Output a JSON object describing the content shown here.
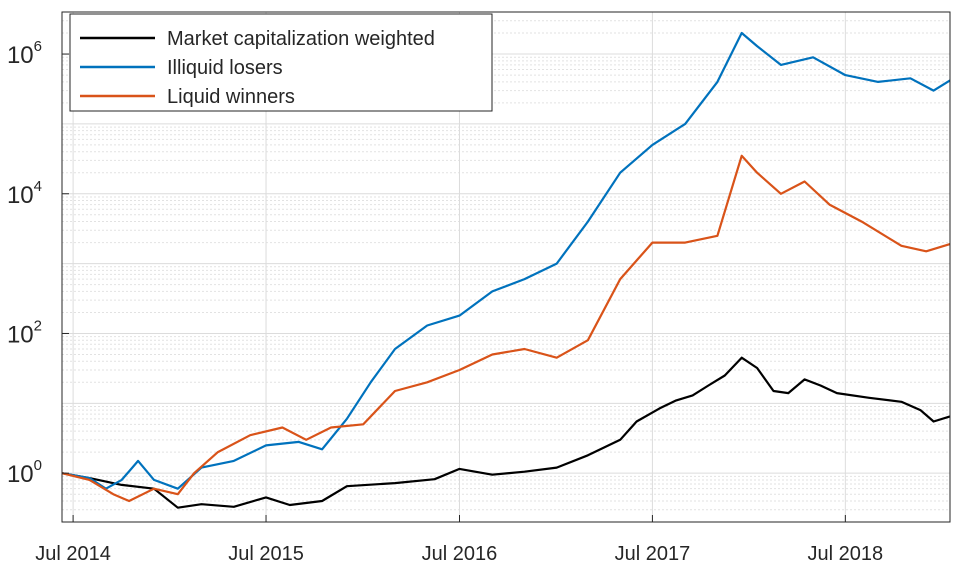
{
  "chart_data": {
    "type": "line",
    "title": "",
    "xlabel": "",
    "ylabel": "",
    "y_scale": "log",
    "ylim": [
      0.2,
      4000000
    ],
    "xlim": [
      "2014-06-10",
      "2019-01-15"
    ],
    "grid": true,
    "minor_grid": true,
    "legend_position": "top-left",
    "x_ticks": [
      {
        "date": "2014-07-01",
        "label": "Jul 2014"
      },
      {
        "date": "2015-07-01",
        "label": "Jul 2015"
      },
      {
        "date": "2016-07-01",
        "label": "Jul 2016"
      },
      {
        "date": "2017-07-01",
        "label": "Jul 2017"
      },
      {
        "date": "2018-07-01",
        "label": "Jul 2018"
      }
    ],
    "y_ticks": [
      {
        "value": 1,
        "base": "10",
        "exp": "0"
      },
      {
        "value": 100,
        "base": "10",
        "exp": "2"
      },
      {
        "value": 10000,
        "base": "10",
        "exp": "4"
      },
      {
        "value": 1000000,
        "base": "10",
        "exp": "6"
      }
    ],
    "series": [
      {
        "name": "Market capitalization weighted",
        "color": "#000000",
        "points": [
          [
            "2014-06-10",
            1.0
          ],
          [
            "2014-08-01",
            0.85
          ],
          [
            "2014-10-01",
            0.68
          ],
          [
            "2014-12-01",
            0.6
          ],
          [
            "2015-01-15",
            0.32
          ],
          [
            "2015-03-01",
            0.36
          ],
          [
            "2015-05-01",
            0.33
          ],
          [
            "2015-07-01",
            0.45
          ],
          [
            "2015-08-15",
            0.35
          ],
          [
            "2015-10-15",
            0.4
          ],
          [
            "2015-12-01",
            0.65
          ],
          [
            "2016-03-01",
            0.72
          ],
          [
            "2016-05-15",
            0.82
          ],
          [
            "2016-07-01",
            1.15
          ],
          [
            "2016-09-01",
            0.95
          ],
          [
            "2016-11-01",
            1.05
          ],
          [
            "2017-01-01",
            1.2
          ],
          [
            "2017-03-01",
            1.8
          ],
          [
            "2017-05-01",
            3.0
          ],
          [
            "2017-06-01",
            5.5
          ],
          [
            "2017-07-15",
            8.5
          ],
          [
            "2017-08-15",
            11.0
          ],
          [
            "2017-09-15",
            13.0
          ],
          [
            "2017-10-15",
            18.0
          ],
          [
            "2017-11-15",
            25.0
          ],
          [
            "2017-12-17",
            45.0
          ],
          [
            "2018-01-15",
            32.0
          ],
          [
            "2018-02-15",
            15.0
          ],
          [
            "2018-03-15",
            14.0
          ],
          [
            "2018-04-15",
            22.0
          ],
          [
            "2018-05-15",
            18.0
          ],
          [
            "2018-06-15",
            14.0
          ],
          [
            "2018-08-15",
            12.0
          ],
          [
            "2018-10-15",
            10.5
          ],
          [
            "2018-11-20",
            8.0
          ],
          [
            "2018-12-15",
            5.5
          ],
          [
            "2019-01-15",
            6.5
          ]
        ]
      },
      {
        "name": "Illiquid losers",
        "color": "#0072BD",
        "points": [
          [
            "2014-06-10",
            1.0
          ],
          [
            "2014-08-01",
            0.85
          ],
          [
            "2014-09-01",
            0.6
          ],
          [
            "2014-10-01",
            0.8
          ],
          [
            "2014-11-01",
            1.5
          ],
          [
            "2014-12-01",
            0.8
          ],
          [
            "2015-01-15",
            0.6
          ],
          [
            "2015-03-01",
            1.2
          ],
          [
            "2015-05-01",
            1.5
          ],
          [
            "2015-07-01",
            2.5
          ],
          [
            "2015-09-01",
            2.8
          ],
          [
            "2015-10-15",
            2.2
          ],
          [
            "2015-12-01",
            6.0
          ],
          [
            "2016-01-15",
            20.0
          ],
          [
            "2016-03-01",
            60.0
          ],
          [
            "2016-05-01",
            130.0
          ],
          [
            "2016-07-01",
            180.0
          ],
          [
            "2016-09-01",
            400.0
          ],
          [
            "2016-11-01",
            600.0
          ],
          [
            "2017-01-01",
            1000.0
          ],
          [
            "2017-03-01",
            4000.0
          ],
          [
            "2017-05-01",
            20000.0
          ],
          [
            "2017-07-01",
            50000.0
          ],
          [
            "2017-09-01",
            100000.0
          ],
          [
            "2017-11-01",
            400000.0
          ],
          [
            "2017-12-17",
            2000000.0
          ],
          [
            "2018-01-15",
            1300000.0
          ],
          [
            "2018-03-01",
            700000.0
          ],
          [
            "2018-05-01",
            900000.0
          ],
          [
            "2018-07-01",
            500000.0
          ],
          [
            "2018-09-01",
            400000.0
          ],
          [
            "2018-11-01",
            450000.0
          ],
          [
            "2018-12-15",
            300000.0
          ],
          [
            "2019-01-15",
            420000.0
          ]
        ]
      },
      {
        "name": "Liquid winners",
        "color": "#D95319",
        "points": [
          [
            "2014-06-10",
            1.0
          ],
          [
            "2014-08-01",
            0.8
          ],
          [
            "2014-09-15",
            0.5
          ],
          [
            "2014-10-15",
            0.4
          ],
          [
            "2014-12-01",
            0.6
          ],
          [
            "2015-01-15",
            0.5
          ],
          [
            "2015-02-15",
            1.0
          ],
          [
            "2015-04-01",
            2.0
          ],
          [
            "2015-06-01",
            3.5
          ],
          [
            "2015-08-01",
            4.5
          ],
          [
            "2015-09-15",
            3.0
          ],
          [
            "2015-11-01",
            4.5
          ],
          [
            "2016-01-01",
            5.0
          ],
          [
            "2016-03-01",
            15.0
          ],
          [
            "2016-05-01",
            20.0
          ],
          [
            "2016-07-01",
            30.0
          ],
          [
            "2016-09-01",
            50.0
          ],
          [
            "2016-11-01",
            60.0
          ],
          [
            "2017-01-01",
            45.0
          ],
          [
            "2017-03-01",
            80.0
          ],
          [
            "2017-05-01",
            600.0
          ],
          [
            "2017-07-01",
            2000.0
          ],
          [
            "2017-09-01",
            2000.0
          ],
          [
            "2017-11-01",
            2500.0
          ],
          [
            "2017-12-17",
            35000.0
          ],
          [
            "2018-01-15",
            20000.0
          ],
          [
            "2018-03-01",
            10000.0
          ],
          [
            "2018-04-15",
            15000.0
          ],
          [
            "2018-06-01",
            7000.0
          ],
          [
            "2018-08-01",
            4000.0
          ],
          [
            "2018-10-15",
            1800.0
          ],
          [
            "2018-12-01",
            1500.0
          ],
          [
            "2019-01-15",
            1900.0
          ]
        ]
      }
    ]
  }
}
